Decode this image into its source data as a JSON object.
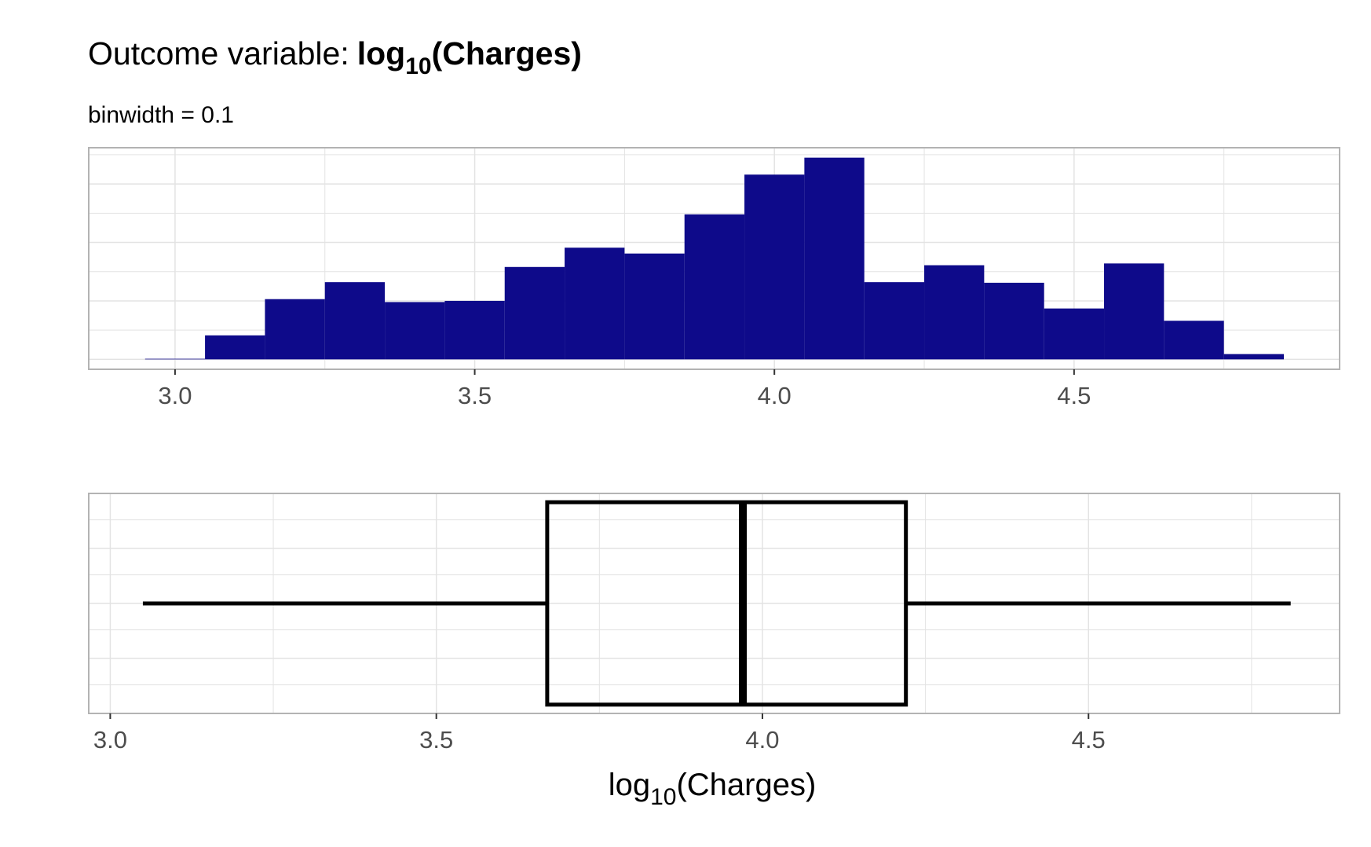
{
  "title": {
    "prefix": "Outcome variable:",
    "fn": "log",
    "sub": "10",
    "arg": "(Charges)"
  },
  "subtitle": "binwidth  = 0.1",
  "xlabel": {
    "fn": "log",
    "sub": "10",
    "arg": "(Charges)"
  },
  "colors": {
    "bar": "#0e0a8a",
    "grid": "#e3e3e3",
    "panel_border": "#b3b3b3",
    "box": "#000000"
  },
  "chart_data": [
    {
      "type": "bar",
      "subtype": "histogram",
      "binwidth": 0.1,
      "bins": [
        {
          "x0": 2.95,
          "x1": 3.05,
          "count": 1
        },
        {
          "x0": 3.05,
          "x1": 3.15,
          "count": 41
        },
        {
          "x0": 3.15,
          "x1": 3.25,
          "count": 103
        },
        {
          "x0": 3.25,
          "x1": 3.35,
          "count": 132
        },
        {
          "x0": 3.35,
          "x1": 3.45,
          "count": 98
        },
        {
          "x0": 3.45,
          "x1": 3.55,
          "count": 100
        },
        {
          "x0": 3.55,
          "x1": 3.65,
          "count": 158
        },
        {
          "x0": 3.65,
          "x1": 3.75,
          "count": 191
        },
        {
          "x0": 3.75,
          "x1": 3.85,
          "count": 181
        },
        {
          "x0": 3.85,
          "x1": 3.95,
          "count": 248
        },
        {
          "x0": 3.95,
          "x1": 4.05,
          "count": 316
        },
        {
          "x0": 4.05,
          "x1": 4.15,
          "count": 345
        },
        {
          "x0": 4.15,
          "x1": 4.25,
          "count": 132
        },
        {
          "x0": 4.25,
          "x1": 4.35,
          "count": 161
        },
        {
          "x0": 4.35,
          "x1": 4.45,
          "count": 131
        },
        {
          "x0": 4.45,
          "x1": 4.55,
          "count": 87
        },
        {
          "x0": 4.55,
          "x1": 4.65,
          "count": 164
        },
        {
          "x0": 4.65,
          "x1": 4.75,
          "count": 66
        },
        {
          "x0": 4.75,
          "x1": 4.85,
          "count": 9
        }
      ],
      "xlim": [
        2.856,
        4.943
      ],
      "ylim": [
        -17,
        362
      ],
      "x_ticks": [
        3.0,
        3.5,
        4.0,
        4.5
      ],
      "x_tick_labels": [
        "3.0",
        "3.5",
        "4.0",
        "4.5"
      ],
      "y_ticks_shown": false,
      "grid": true
    },
    {
      "type": "boxplot",
      "min": 3.05,
      "q1": 3.67,
      "median": 3.97,
      "q3": 4.22,
      "max": 4.81,
      "xlim": [
        2.967,
        4.885
      ],
      "x_ticks": [
        3.0,
        3.5,
        4.0,
        4.5
      ],
      "x_tick_labels": [
        "3.0",
        "3.5",
        "4.0",
        "4.5"
      ],
      "grid": true
    }
  ]
}
